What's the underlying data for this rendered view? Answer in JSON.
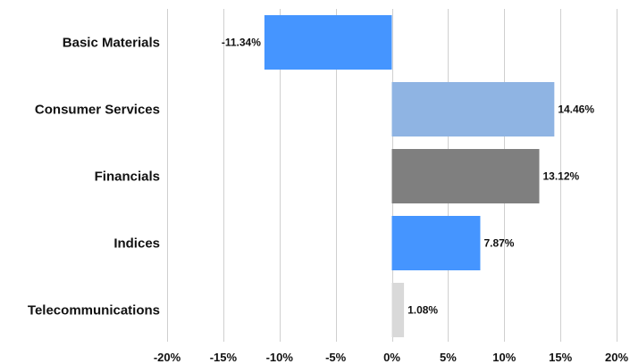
{
  "chart_data": {
    "type": "bar",
    "orientation": "horizontal",
    "categories": [
      "Basic Materials",
      "Consumer Services",
      "Financials",
      "Indices",
      "Telecommunications"
    ],
    "values": [
      -11.34,
      14.46,
      13.12,
      7.87,
      1.08
    ],
    "value_labels": [
      "-11.34%",
      "14.46%",
      "13.12%",
      "7.87%",
      "1.08%"
    ],
    "bar_colors": [
      "#4595ff",
      "#8fb4e3",
      "#7f7f7f",
      "#4595ff",
      "#d9d9d9"
    ],
    "xlim": [
      -20,
      20
    ],
    "x_ticks": [
      -20,
      -15,
      -10,
      -5,
      0,
      5,
      10,
      15,
      20
    ],
    "x_tick_labels": [
      "-20%",
      "-15%",
      "-10%",
      "-5%",
      "0%",
      "5%",
      "10%",
      "15%",
      "20%"
    ],
    "grid": "vertical",
    "legend": "none",
    "title": "",
    "xlabel": "",
    "ylabel": ""
  }
}
